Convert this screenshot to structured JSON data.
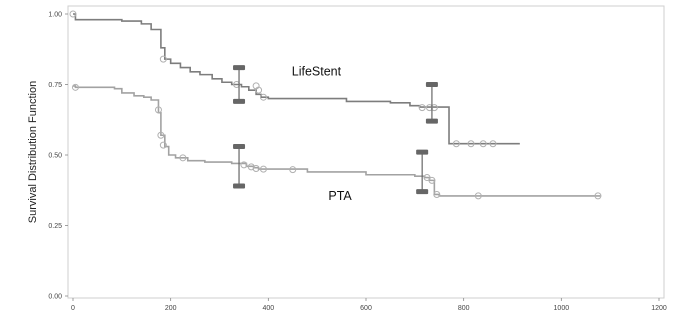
{
  "chart_data": {
    "type": "line",
    "title": "",
    "xlabel": "",
    "ylabel": "Survival Distribution Function",
    "xlim": [
      0,
      1200
    ],
    "ylim": [
      0,
      1
    ],
    "xticks": [
      0,
      200,
      400,
      600,
      800,
      1000,
      1200
    ],
    "yticks": [
      "0.00",
      "0.25",
      "0.50",
      "0.75",
      "1.00"
    ],
    "grid": false,
    "legend": "none",
    "colors": {
      "lifestent": "#7d7d7d",
      "pta": "#a2a2a2",
      "ci_bar": "#666666",
      "censor": "#b0b0b0",
      "frame": "#cfcfcf"
    },
    "series": [
      {
        "name": "LifeStent",
        "label_at": [
          448,
          0.782
        ],
        "steps": [
          [
            0,
            1.0
          ],
          [
            5,
            0.98
          ],
          [
            100,
            0.975
          ],
          [
            140,
            0.965
          ],
          [
            160,
            0.945
          ],
          [
            180,
            0.88
          ],
          [
            188,
            0.84
          ],
          [
            200,
            0.825
          ],
          [
            220,
            0.81
          ],
          [
            240,
            0.795
          ],
          [
            260,
            0.785
          ],
          [
            285,
            0.77
          ],
          [
            305,
            0.758
          ],
          [
            325,
            0.75
          ],
          [
            345,
            0.742
          ],
          [
            360,
            0.73
          ],
          [
            375,
            0.715
          ],
          [
            385,
            0.705
          ],
          [
            400,
            0.7
          ],
          [
            560,
            0.69
          ],
          [
            650,
            0.685
          ],
          [
            690,
            0.675
          ],
          [
            710,
            0.67
          ],
          [
            770,
            0.54
          ],
          [
            915,
            0.54
          ]
        ],
        "censored": [
          [
            0,
            1.0
          ],
          [
            5,
            0.74
          ],
          [
            185,
            0.84
          ],
          [
            335,
            0.75
          ],
          [
            375,
            0.745
          ],
          [
            380,
            0.73
          ],
          [
            390,
            0.705
          ],
          [
            715,
            0.668
          ],
          [
            730,
            0.668
          ],
          [
            740,
            0.668
          ],
          [
            785,
            0.54
          ],
          [
            815,
            0.54
          ],
          [
            840,
            0.54
          ],
          [
            860,
            0.54
          ]
        ],
        "ci_bars": [
          [
            340,
            0.69,
            0.81
          ],
          [
            735,
            0.62,
            0.75
          ]
        ]
      },
      {
        "name": "PTA",
        "label_at": [
          523,
          0.34
        ],
        "steps": [
          [
            0,
            0.745
          ],
          [
            5,
            0.74
          ],
          [
            85,
            0.735
          ],
          [
            100,
            0.72
          ],
          [
            125,
            0.71
          ],
          [
            145,
            0.705
          ],
          [
            160,
            0.695
          ],
          [
            175,
            0.65
          ],
          [
            180,
            0.57
          ],
          [
            188,
            0.53
          ],
          [
            196,
            0.5
          ],
          [
            210,
            0.49
          ],
          [
            235,
            0.48
          ],
          [
            270,
            0.475
          ],
          [
            325,
            0.47
          ],
          [
            355,
            0.46
          ],
          [
            370,
            0.455
          ],
          [
            380,
            0.45
          ],
          [
            420,
            0.45
          ],
          [
            480,
            0.44
          ],
          [
            600,
            0.43
          ],
          [
            700,
            0.425
          ],
          [
            720,
            0.42
          ],
          [
            730,
            0.41
          ],
          [
            740,
            0.36
          ],
          [
            750,
            0.355
          ],
          [
            1080,
            0.355
          ]
        ],
        "censored": [
          [
            175,
            0.66
          ],
          [
            180,
            0.57
          ],
          [
            185,
            0.535
          ],
          [
            225,
            0.49
          ],
          [
            350,
            0.465
          ],
          [
            365,
            0.458
          ],
          [
            375,
            0.452
          ],
          [
            390,
            0.45
          ],
          [
            450,
            0.448
          ],
          [
            725,
            0.42
          ],
          [
            735,
            0.41
          ],
          [
            745,
            0.36
          ],
          [
            830,
            0.355
          ],
          [
            1075,
            0.355
          ]
        ],
        "ci_bars": [
          [
            340,
            0.39,
            0.53
          ],
          [
            715,
            0.37,
            0.51
          ]
        ]
      }
    ]
  }
}
